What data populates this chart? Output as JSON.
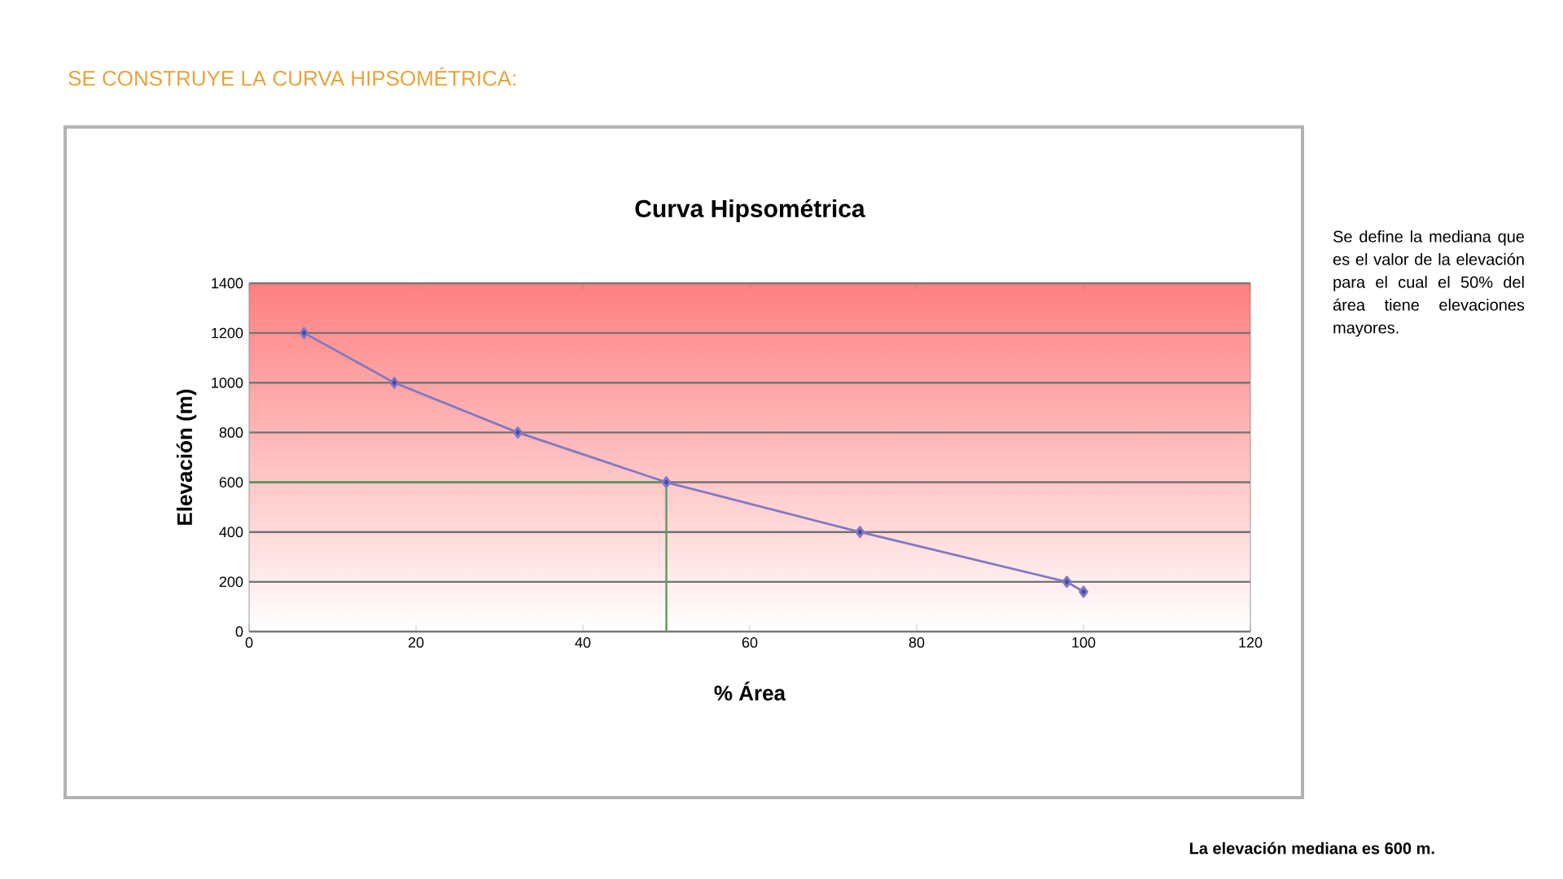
{
  "chart_data": {
    "type": "line",
    "title": "Curva Hipsométrica",
    "xlabel": "% Área",
    "ylabel": "Elevación (m)",
    "annotations": [
      "SE CONSTRUYE LA CURVA HIPSOMÉTRICA:",
      "Se define la mediana que es el valor de la elevación para el cual el 50% del área tiene elevaciones mayores.",
      "La elevación mediana es 600 m."
    ],
    "x": [
      6.6,
      17.4,
      32.2,
      50,
      73.2,
      98,
      100
    ],
    "series": [
      {
        "color": "#4b40a8",
        "values": [
          1200,
          1000,
          800,
          600,
          400,
          200,
          160
        ]
      }
    ],
    "xlim": [
      0,
      120
    ],
    "ylim": [
      0,
      1400
    ],
    "xticks": [
      0,
      20,
      40,
      60,
      80,
      100,
      120
    ],
    "yticks": [
      0,
      200,
      400,
      600,
      800,
      1000,
      1200,
      1400
    ],
    "grid": "y",
    "marker": "diamond",
    "line_style": "solid",
    "ref_lines": [
      {
        "axis": "x",
        "value": 50,
        "color": "#5a9a5a"
      },
      {
        "axis": "y",
        "value": 600,
        "color": "#5a9a5a"
      }
    ]
  }
}
